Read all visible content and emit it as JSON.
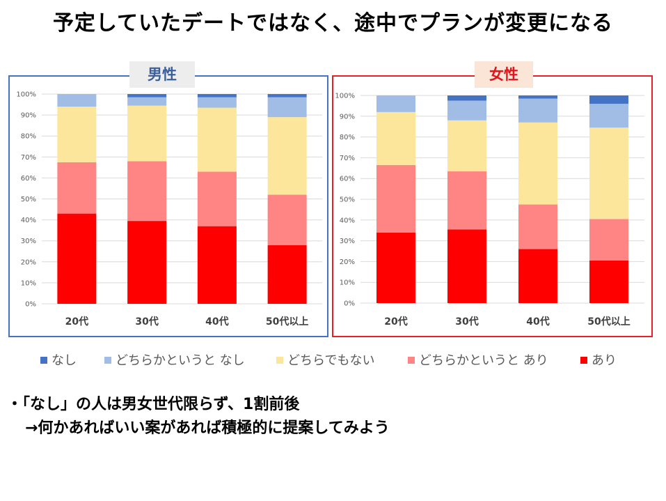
{
  "title": "予定していたデートではなく、途中でプランが変更になる",
  "panels": {
    "male": "男性",
    "female": "女性"
  },
  "legend": [
    {
      "name": "なし",
      "color": "#4472C4"
    },
    {
      "name": "どちらかというと なし",
      "color": "#A2BDE5"
    },
    {
      "name": "どちらでもない",
      "color": "#FCE69C"
    },
    {
      "name": "どちらかというと あり",
      "color": "#FF8585"
    },
    {
      "name": "あり",
      "color": "#FF0000"
    }
  ],
  "notes": {
    "line1": "・「なし」の人は男女世代限らず、1割前後",
    "line2": "→何かあればいい案があれば積極的に提案してみよう"
  },
  "chart_data": [
    {
      "type": "bar",
      "stacked": true,
      "panel": "男性",
      "categories": [
        "20代",
        "30代",
        "40代",
        "50代以上"
      ],
      "series": [
        {
          "name": "あり",
          "values": [
            43,
            39.5,
            37,
            28
          ]
        },
        {
          "name": "どちらかというと あり",
          "values": [
            24.5,
            28.5,
            26,
            24
          ]
        },
        {
          "name": "どちらでもない",
          "values": [
            26.5,
            26.5,
            30.5,
            37
          ]
        },
        {
          "name": "どちらかというと なし",
          "values": [
            6,
            4,
            5,
            9.5
          ]
        },
        {
          "name": "なし",
          "values": [
            0,
            1.5,
            1.5,
            1.5
          ]
        }
      ],
      "ylim": [
        0,
        100
      ],
      "yticks": [
        "0%",
        "10%",
        "20%",
        "30%",
        "40%",
        "50%",
        "60%",
        "70%",
        "80%",
        "90%",
        "100%"
      ],
      "grid": true
    },
    {
      "type": "bar",
      "stacked": true,
      "panel": "女性",
      "categories": [
        "20代",
        "30代",
        "40代",
        "50代以上"
      ],
      "series": [
        {
          "name": "あり",
          "values": [
            34,
            35.5,
            26,
            20.5
          ]
        },
        {
          "name": "どちらかというと あり",
          "values": [
            32.5,
            28,
            21.5,
            20
          ]
        },
        {
          "name": "どちらでもない",
          "values": [
            25.5,
            24.5,
            39.5,
            44
          ]
        },
        {
          "name": "どちらかというと なし",
          "values": [
            8,
            9.5,
            11.5,
            11.5
          ]
        },
        {
          "name": "なし",
          "values": [
            0,
            2.5,
            1.5,
            4
          ]
        }
      ],
      "ylim": [
        0,
        100
      ],
      "yticks": [
        "0%",
        "10%",
        "20%",
        "30%",
        "40%",
        "50%",
        "60%",
        "70%",
        "80%",
        "90%",
        "100%"
      ],
      "grid": true
    }
  ]
}
